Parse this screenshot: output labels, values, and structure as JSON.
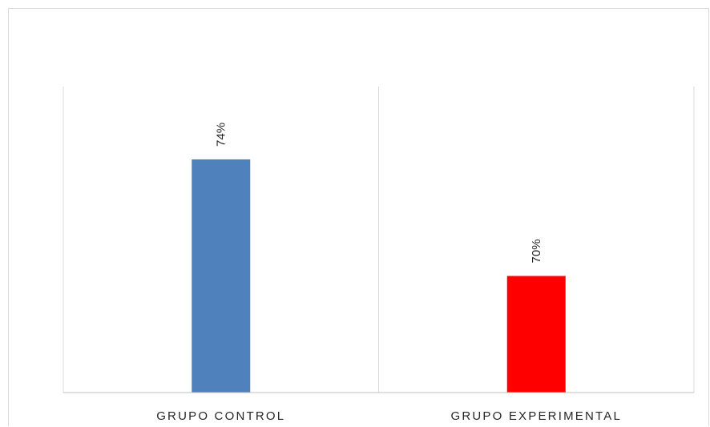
{
  "chart_data": {
    "type": "bar",
    "categories": [
      "GRUPO CONTROL",
      "GRUPO EXPERIMENTAL"
    ],
    "values": [
      74,
      70
    ],
    "data_labels": [
      "74%",
      "70%"
    ],
    "bar_colors": [
      "#4f81bd",
      "#ff0000"
    ],
    "gridline_color": "#d9d9d9",
    "axis_color": "#bfbfbf",
    "title": "",
    "xlabel": "",
    "ylabel": "",
    "ylim": [
      66,
      76.5
    ],
    "grid": true,
    "legend": "none",
    "label_rotation": -90
  }
}
